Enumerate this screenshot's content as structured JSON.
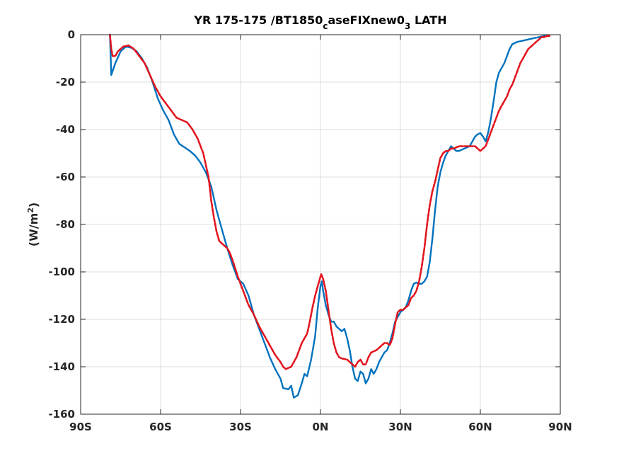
{
  "chart_data": {
    "type": "line",
    "title": {
      "part1": "YR 175-175 /BT1850",
      "sub1": "c",
      "part2": "aseFIXnew0",
      "sub2": "3",
      "part3": " LATH"
    },
    "xlabel": "",
    "ylabel": {
      "base": "(W/m",
      "sup": "2",
      "close": ")"
    },
    "xlim": [
      -90,
      90
    ],
    "ylim": [
      -160,
      0
    ],
    "grid": true,
    "xticks": [
      {
        "value": -90,
        "label": "90S"
      },
      {
        "value": -60,
        "label": "60S"
      },
      {
        "value": -30,
        "label": "30S"
      },
      {
        "value": 0,
        "label": "0N"
      },
      {
        "value": 30,
        "label": "30N"
      },
      {
        "value": 60,
        "label": "60N"
      },
      {
        "value": 90,
        "label": "90N"
      }
    ],
    "yticks": [
      {
        "value": 0,
        "label": "0"
      },
      {
        "value": -20,
        "label": "-20"
      },
      {
        "value": -40,
        "label": "-40"
      },
      {
        "value": -60,
        "label": "-60"
      },
      {
        "value": -80,
        "label": "-80"
      },
      {
        "value": -100,
        "label": "-100"
      },
      {
        "value": -120,
        "label": "-120"
      },
      {
        "value": -140,
        "label": "-140"
      },
      {
        "value": -160,
        "label": "-160"
      }
    ],
    "series": [
      {
        "color": "#0072BD",
        "style": "solid",
        "points": [
          [
            -79,
            0
          ],
          [
            -78.5,
            -17
          ],
          [
            -77,
            -12
          ],
          [
            -75,
            -7
          ],
          [
            -73,
            -5
          ],
          [
            -71,
            -5.5
          ],
          [
            -69,
            -7
          ],
          [
            -67,
            -10
          ],
          [
            -65,
            -14
          ],
          [
            -63,
            -20
          ],
          [
            -61,
            -27
          ],
          [
            -59,
            -32
          ],
          [
            -57,
            -36
          ],
          [
            -55,
            -42
          ],
          [
            -53,
            -46
          ],
          [
            -51,
            -47.5
          ],
          [
            -49,
            -49
          ],
          [
            -47,
            -51
          ],
          [
            -45,
            -54
          ],
          [
            -43,
            -58
          ],
          [
            -41,
            -64
          ],
          [
            -39,
            -74
          ],
          [
            -37,
            -82
          ],
          [
            -35,
            -90
          ],
          [
            -33,
            -97
          ],
          [
            -31,
            -103
          ],
          [
            -29,
            -105
          ],
          [
            -27,
            -110
          ],
          [
            -25,
            -118
          ],
          [
            -23,
            -124
          ],
          [
            -21,
            -130
          ],
          [
            -19,
            -136
          ],
          [
            -17,
            -141
          ],
          [
            -15,
            -145
          ],
          [
            -14,
            -149
          ],
          [
            -12,
            -149.5
          ],
          [
            -11,
            -148
          ],
          [
            -10,
            -153
          ],
          [
            -8.5,
            -152
          ],
          [
            -7,
            -147
          ],
          [
            -6,
            -143
          ],
          [
            -5,
            -144
          ],
          [
            -3.5,
            -137
          ],
          [
            -2,
            -127
          ],
          [
            -1,
            -115
          ],
          [
            0,
            -106
          ],
          [
            0.5,
            -104
          ],
          [
            1,
            -108
          ],
          [
            2,
            -114
          ],
          [
            3,
            -118
          ],
          [
            4,
            -121
          ],
          [
            5,
            -121
          ],
          [
            6,
            -123
          ],
          [
            8,
            -125
          ],
          [
            9,
            -124
          ],
          [
            10,
            -128
          ],
          [
            11,
            -133
          ],
          [
            12,
            -140
          ],
          [
            13,
            -145
          ],
          [
            14,
            -146
          ],
          [
            15,
            -142
          ],
          [
            16,
            -143
          ],
          [
            17,
            -147
          ],
          [
            18,
            -145
          ],
          [
            19,
            -141
          ],
          [
            20,
            -143
          ],
          [
            21,
            -141
          ],
          [
            22,
            -138
          ],
          [
            23,
            -136
          ],
          [
            24,
            -134
          ],
          [
            25,
            -133
          ],
          [
            26,
            -130
          ],
          [
            27,
            -126
          ],
          [
            28,
            -121
          ],
          [
            30,
            -117
          ],
          [
            31,
            -116
          ],
          [
            32,
            -115
          ],
          [
            33,
            -112
          ],
          [
            34,
            -108
          ],
          [
            35,
            -105
          ],
          [
            36,
            -104.5
          ],
          [
            37,
            -105
          ],
          [
            38,
            -105
          ],
          [
            39,
            -104
          ],
          [
            40,
            -102
          ],
          [
            41,
            -96
          ],
          [
            42,
            -86
          ],
          [
            43,
            -74
          ],
          [
            44,
            -64
          ],
          [
            45,
            -58
          ],
          [
            46,
            -54
          ],
          [
            47,
            -51
          ],
          [
            48,
            -49
          ],
          [
            49,
            -47
          ],
          [
            50,
            -48
          ],
          [
            51,
            -49
          ],
          [
            52,
            -49
          ],
          [
            54,
            -48
          ],
          [
            56,
            -47
          ],
          [
            57,
            -45
          ],
          [
            58,
            -43
          ],
          [
            59,
            -42
          ],
          [
            60,
            -41.5
          ],
          [
            61,
            -43
          ],
          [
            62,
            -45
          ],
          [
            63,
            -41
          ],
          [
            64,
            -35
          ],
          [
            65,
            -28
          ],
          [
            66,
            -20
          ],
          [
            67,
            -16
          ],
          [
            68,
            -14
          ],
          [
            69,
            -12
          ],
          [
            70,
            -9
          ],
          [
            71,
            -6
          ],
          [
            72,
            -4
          ],
          [
            74,
            -3
          ],
          [
            76,
            -2.5
          ],
          [
            78,
            -2
          ],
          [
            80,
            -1.5
          ],
          [
            82,
            -1
          ],
          [
            84,
            -0.5
          ],
          [
            85,
            -0.5
          ]
        ]
      },
      {
        "color": "#E2141E",
        "style": "dashed",
        "points": [
          [
            -79,
            0
          ],
          [
            -78.5,
            -6
          ],
          [
            -78,
            -9
          ],
          [
            -77,
            -9
          ],
          [
            -76,
            -7
          ],
          [
            -74,
            -5
          ],
          [
            -72,
            -4.5
          ],
          [
            -70,
            -6
          ],
          [
            -68,
            -9
          ],
          [
            -66,
            -12
          ],
          [
            -64,
            -17
          ],
          [
            -62,
            -22
          ],
          [
            -60,
            -26
          ],
          [
            -58,
            -29
          ],
          [
            -56,
            -32
          ],
          [
            -54,
            -35
          ],
          [
            -52,
            -36
          ],
          [
            -50,
            -37
          ],
          [
            -48,
            -40
          ],
          [
            -46,
            -44
          ],
          [
            -44,
            -50
          ],
          [
            -42,
            -60
          ],
          [
            -41,
            -70
          ],
          [
            -40,
            -77
          ],
          [
            -39,
            -83
          ],
          [
            -38,
            -87
          ],
          [
            -37,
            -88
          ],
          [
            -35,
            -90
          ],
          [
            -34,
            -92
          ],
          [
            -33,
            -95
          ],
          [
            -31,
            -102
          ],
          [
            -29,
            -108
          ],
          [
            -27,
            -114
          ],
          [
            -25,
            -118
          ],
          [
            -23,
            -123
          ],
          [
            -21,
            -127
          ],
          [
            -19,
            -131
          ],
          [
            -17,
            -135
          ],
          [
            -15,
            -138
          ],
          [
            -14,
            -140
          ],
          [
            -13,
            -141
          ],
          [
            -11,
            -140
          ],
          [
            -9,
            -136
          ],
          [
            -7,
            -130
          ],
          [
            -6,
            -128
          ],
          [
            -5,
            -126
          ],
          [
            -4,
            -121
          ],
          [
            -3,
            -115
          ],
          [
            -2,
            -110
          ],
          [
            -1,
            -106
          ],
          [
            0,
            -102
          ],
          [
            0.3,
            -101
          ],
          [
            1,
            -103
          ],
          [
            2,
            -108
          ],
          [
            3,
            -116
          ],
          [
            4,
            -124
          ],
          [
            5,
            -130
          ],
          [
            6,
            -134
          ],
          [
            7,
            -136
          ],
          [
            8,
            -136.5
          ],
          [
            10,
            -137
          ],
          [
            11,
            -138
          ],
          [
            12,
            -139
          ],
          [
            13,
            -140
          ],
          [
            14,
            -138
          ],
          [
            15,
            -137
          ],
          [
            16,
            -139
          ],
          [
            17,
            -139
          ],
          [
            18,
            -136
          ],
          [
            19,
            -134
          ],
          [
            20,
            -133.5
          ],
          [
            21,
            -133
          ],
          [
            22,
            -132
          ],
          [
            23,
            -131
          ],
          [
            24,
            -130
          ],
          [
            25,
            -130
          ],
          [
            26,
            -131
          ],
          [
            27,
            -128
          ],
          [
            28,
            -122
          ],
          [
            29,
            -117
          ],
          [
            30,
            -116
          ],
          [
            31,
            -116
          ],
          [
            32,
            -115
          ],
          [
            33,
            -114
          ],
          [
            34,
            -111
          ],
          [
            35,
            -110
          ],
          [
            36,
            -108
          ],
          [
            37,
            -104
          ],
          [
            38,
            -98
          ],
          [
            39,
            -90
          ],
          [
            40,
            -80
          ],
          [
            41,
            -72
          ],
          [
            42,
            -66
          ],
          [
            43,
            -62
          ],
          [
            44,
            -57
          ],
          [
            45,
            -52
          ],
          [
            46,
            -50
          ],
          [
            47,
            -49
          ],
          [
            48,
            -49
          ],
          [
            49,
            -48
          ],
          [
            50,
            -48
          ],
          [
            52,
            -47
          ],
          [
            54,
            -47
          ],
          [
            56,
            -47
          ],
          [
            58,
            -47
          ],
          [
            59,
            -48
          ],
          [
            60,
            -49
          ],
          [
            61,
            -48
          ],
          [
            62,
            -47
          ],
          [
            63,
            -44
          ],
          [
            64,
            -41
          ],
          [
            65,
            -38
          ],
          [
            66,
            -35
          ],
          [
            67,
            -32
          ],
          [
            68,
            -30
          ],
          [
            69,
            -28
          ],
          [
            70,
            -26
          ],
          [
            71,
            -23
          ],
          [
            72,
            -21
          ],
          [
            73,
            -18
          ],
          [
            74,
            -15
          ],
          [
            75,
            -12
          ],
          [
            76,
            -10
          ],
          [
            77,
            -8
          ],
          [
            78,
            -6
          ],
          [
            79,
            -5
          ],
          [
            80,
            -4
          ],
          [
            81,
            -3
          ],
          [
            82,
            -2
          ],
          [
            83,
            -1
          ],
          [
            84,
            -1
          ],
          [
            85,
            -0.5
          ],
          [
            86,
            -0.5
          ]
        ]
      }
    ]
  }
}
